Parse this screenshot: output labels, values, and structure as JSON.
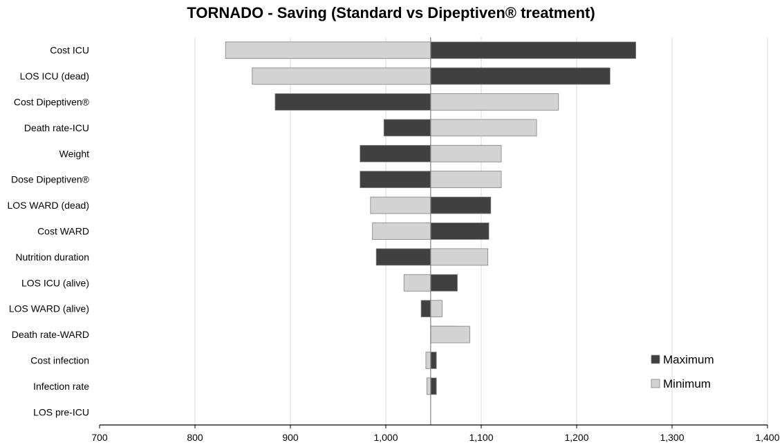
{
  "chart_data": {
    "type": "bar",
    "orientation": "horizontal",
    "subtype": "tornado",
    "title": "TORNADO - Saving (Standard vs Dipeptiven® treatment)",
    "xlabel": "",
    "ylabel": "",
    "xlim": [
      700,
      1400
    ],
    "xticks": [
      700,
      800,
      900,
      1000,
      1100,
      1200,
      1300,
      1400
    ],
    "xtick_labels": [
      "700",
      "800",
      "900",
      "1,000",
      "1,100",
      "1,200",
      "1,300",
      "1,400"
    ],
    "base_value": 1047,
    "grid": "vertical",
    "legend_position": "bottom-right",
    "categories": [
      "Cost ICU",
      "LOS ICU (dead)",
      "Cost Dipeptiven®",
      "Death rate-ICU",
      "Weight",
      "Dose Dipeptiven®",
      "LOS WARD (dead)",
      "Cost WARD",
      "Nutrition duration",
      "LOS ICU (alive)",
      "LOS WARD (alive)",
      "Death rate-WARD",
      "Cost infection",
      "Infection rate",
      "LOS pre-ICU"
    ],
    "series": [
      {
        "name": "Maximum",
        "color": "#404040",
        "values": [
          1262,
          1235,
          884,
          998,
          973,
          973,
          1110,
          1108,
          990,
          1075,
          1037,
          1073,
          1053,
          1053,
          1047
        ]
      },
      {
        "name": "Minimum",
        "color": "#d3d3d3",
        "values": [
          832,
          860,
          1181,
          1158,
          1121,
          1121,
          984,
          986,
          1107,
          1019,
          1059,
          1088,
          1042,
          1043,
          1047
        ]
      }
    ]
  }
}
